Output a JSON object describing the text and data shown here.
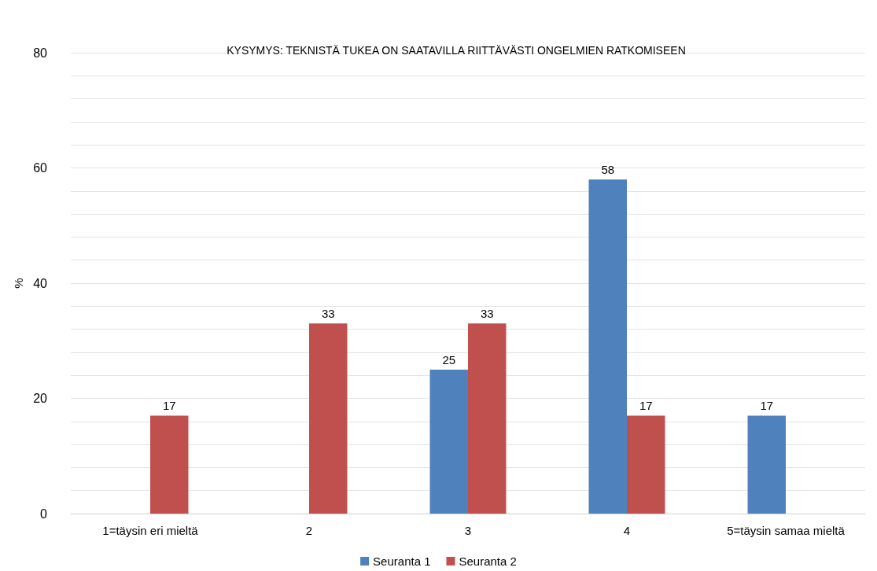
{
  "chart_data": {
    "type": "bar",
    "title": "KYSYMYS: TEKNISTÄ TUKEA ON SAATAVILLA RIITTÄVÄSTI ONGELMIEN RATKOMISEEN",
    "ylabel": "%",
    "categories": [
      "1=täysin eri mieltä",
      "2",
      "3",
      "4",
      "5=täysin samaa mieltä"
    ],
    "series": [
      {
        "name": "Seuranta 1",
        "color": "#4f81bd",
        "values": [
          null,
          null,
          25,
          58,
          17
        ]
      },
      {
        "name": "Seuranta 2",
        "color": "#c0504d",
        "values": [
          17,
          33,
          33,
          17,
          null
        ]
      }
    ],
    "ylim": [
      0,
      80
    ],
    "yticks": [
      0,
      {
        "value": 4,
        "label": null
      },
      {
        "value": 8,
        "label": null
      },
      {
        "value": 12,
        "label": null
      },
      {
        "value": 16,
        "label": null
      },
      20,
      {
        "value": 24,
        "label": null
      },
      {
        "value": 28,
        "label": null
      },
      {
        "value": 32,
        "label": null
      },
      {
        "value": 36,
        "label": null
      },
      40,
      {
        "value": 44,
        "label": null
      },
      {
        "value": 48,
        "label": null
      },
      {
        "value": 52,
        "label": null
      },
      {
        "value": 56,
        "label": null
      },
      60,
      {
        "value": 64,
        "label": null
      },
      {
        "value": 68,
        "label": null
      },
      {
        "value": 72,
        "label": null
      },
      {
        "value": 76,
        "label": null
      },
      80
    ],
    "grid": "y",
    "legend": "bottom",
    "data_labels": true
  }
}
